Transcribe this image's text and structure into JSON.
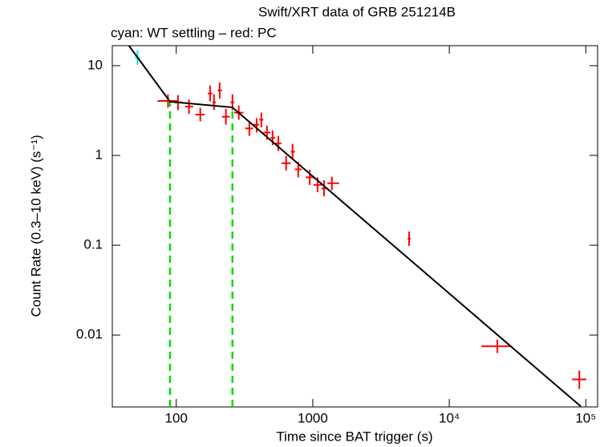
{
  "chart_data": {
    "type": "scatter",
    "title": "Swift/XRT data of GRB 251214B",
    "subtitle": "cyan: WT settling – red: PC",
    "x_label": "Time since BAT trigger (s)",
    "y_label": "Count Rate (0.3–10 keV) (s⁻¹)",
    "xscale": "log",
    "yscale": "log",
    "xlim": [
      34,
      122000
    ],
    "ylim": [
      0.00158,
      16.7
    ],
    "xticks": [
      100,
      1000,
      {
        "value": 10000,
        "label": "10⁴"
      },
      {
        "value": 100000,
        "label": "10⁵"
      }
    ],
    "yticks": [
      0.01,
      0.1,
      1,
      10
    ],
    "series": [
      {
        "color": "#00e5e5",
        "x": [
          52
        ],
        "x_low": [
          50
        ],
        "x_high": [
          54
        ],
        "values": [
          12.3
        ],
        "y_low": [
          10.2
        ],
        "y_high": [
          14.8
        ]
      },
      {
        "color": "#ff0000",
        "x": [
          87,
          103,
          124,
          150,
          177,
          189,
          208,
          231,
          258,
          287,
          343,
          388,
          420,
          462,
          508,
          559,
          638,
          711,
          783,
          950,
          1085,
          1210,
          1380,
          5080,
          22500,
          89700
        ],
        "x_low": [
          73,
          97,
          116,
          138,
          170,
          184,
          201,
          216,
          250,
          266,
          320,
          365,
          405,
          435,
          490,
          530,
          590,
          690,
          740,
          890,
          1010,
          1160,
          1280,
          4950,
          17200,
          79400
        ],
        "x_high": [
          103,
          110,
          133,
          162,
          184,
          195,
          216,
          247,
          266,
          310,
          365,
          405,
          435,
          490,
          530,
          590,
          690,
          740,
          830,
          1010,
          1160,
          1280,
          1560,
          5210,
          28800,
          101000
        ],
        "values": [
          4.05,
          3.9,
          3.5,
          2.85,
          4.9,
          3.9,
          5.3,
          2.7,
          3.9,
          3.0,
          2.0,
          2.2,
          2.5,
          1.8,
          1.57,
          1.36,
          0.82,
          1.1,
          0.7,
          0.57,
          0.47,
          0.43,
          0.49,
          0.118,
          0.0075,
          0.0032
        ],
        "y_low": [
          3.4,
          3.2,
          2.9,
          2.4,
          4.0,
          3.2,
          4.3,
          2.2,
          3.2,
          2.5,
          1.65,
          1.8,
          2.05,
          1.5,
          1.3,
          1.12,
          0.68,
          0.9,
          0.57,
          0.47,
          0.39,
          0.35,
          0.41,
          0.098,
          0.0063,
          0.0025
        ],
        "y_high": [
          4.8,
          4.7,
          4.2,
          3.4,
          6.0,
          4.8,
          6.5,
          3.3,
          4.8,
          3.6,
          2.4,
          2.6,
          3.0,
          2.15,
          1.9,
          1.65,
          0.99,
          1.35,
          0.85,
          0.69,
          0.57,
          0.53,
          0.58,
          0.142,
          0.0089,
          0.004
        ]
      }
    ],
    "fit": {
      "color": "#000000",
      "x": [
        45,
        90,
        258,
        92000
      ],
      "values": [
        16.7,
        3.97,
        3.43,
        0.0016
      ]
    },
    "breaks": {
      "color": "#00dd00",
      "x": [
        90,
        258
      ]
    }
  }
}
